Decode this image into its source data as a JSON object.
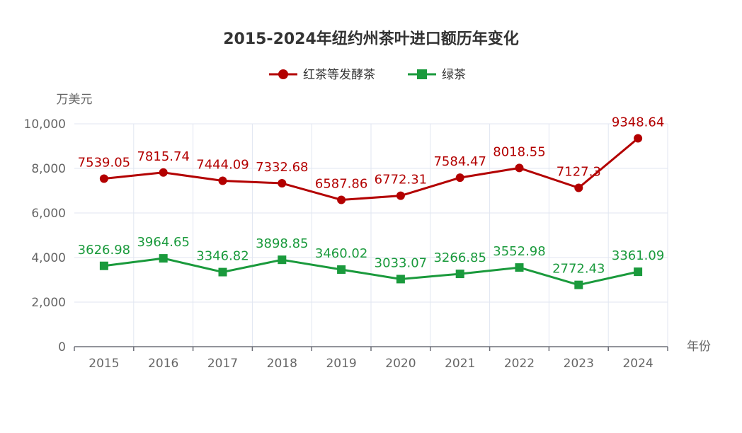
{
  "chart_data": {
    "type": "line",
    "title": "2015-2024年纽约州茶叶进口额历年变化",
    "xlabel": "年份",
    "ylabel": "万美元",
    "categories": [
      "2015",
      "2016",
      "2017",
      "2018",
      "2019",
      "2020",
      "2021",
      "2022",
      "2023",
      "2024"
    ],
    "ylim": [
      0,
      10000
    ],
    "yticks": [
      "0",
      "2,000",
      "4,000",
      "6,000",
      "8,000",
      "10,000"
    ],
    "ytick_values": [
      0,
      2000,
      4000,
      6000,
      8000,
      10000
    ],
    "grid": true,
    "legend_position": "top-center",
    "series": [
      {
        "name": "红茶等发酵茶",
        "color": "#b30000",
        "marker": "circle",
        "values": [
          7539.05,
          7815.74,
          7444.09,
          7332.68,
          6587.86,
          6772.31,
          7584.47,
          8018.55,
          7127.3,
          9348.64
        ],
        "labels": [
          "7539.05",
          "7815.74",
          "7444.09",
          "7332.68",
          "6587.86",
          "6772.31",
          "7584.47",
          "8018.55",
          "7127.3",
          "9348.64"
        ]
      },
      {
        "name": "绿茶",
        "color": "#1a9a3c",
        "marker": "square",
        "values": [
          3626.98,
          3964.65,
          3346.82,
          3898.85,
          3460.02,
          3033.07,
          3266.85,
          3552.98,
          2772.43,
          3361.09
        ],
        "labels": [
          "3626.98",
          "3964.65",
          "3346.82",
          "3898.85",
          "3460.02",
          "3033.07",
          "3266.85",
          "3552.98",
          "2772.43",
          "3361.09"
        ]
      }
    ]
  }
}
